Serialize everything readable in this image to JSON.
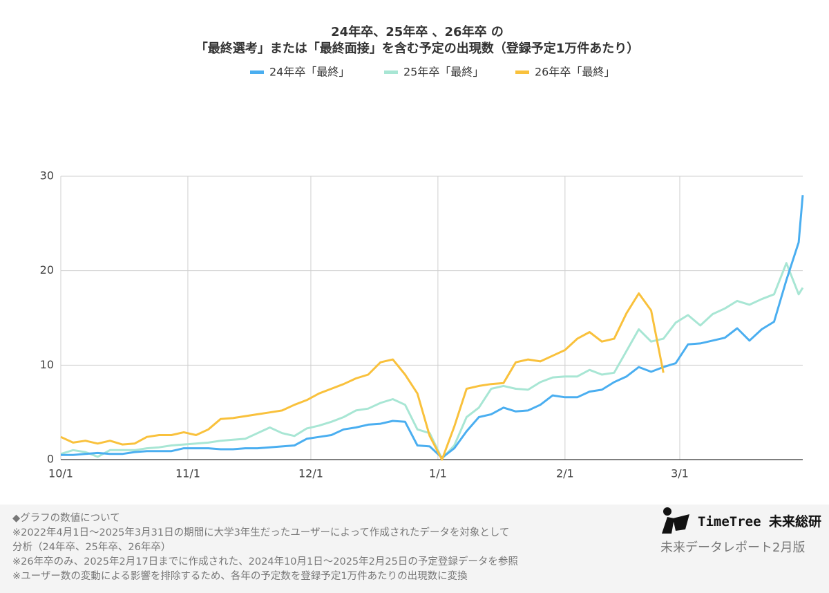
{
  "chart_data": {
    "type": "line",
    "title": "24年卒、25年卒 、26年卒 の",
    "subtitle": "「最終選考」または「最終面接」を含む予定の出現数（登録予定1万件あたり）",
    "x": [
      0,
      3,
      6,
      9,
      12,
      15,
      18,
      21,
      24,
      27,
      30,
      33,
      36,
      39,
      42,
      45,
      48,
      51,
      54,
      57,
      60,
      63,
      66,
      69,
      72,
      75,
      78,
      81,
      84,
      87,
      90,
      93,
      96,
      99,
      102,
      105,
      108,
      111,
      114,
      117,
      120,
      123,
      126,
      129,
      132,
      135,
      138,
      141,
      144,
      147,
      150,
      153,
      156,
      159,
      162,
      165,
      168,
      171,
      174,
      177,
      180,
      181
    ],
    "xlim": [
      0,
      181
    ],
    "xticks": [
      {
        "value": 0,
        "label": "10/1"
      },
      {
        "value": 31,
        "label": "11/1"
      },
      {
        "value": 61,
        "label": "12/1"
      },
      {
        "value": 92,
        "label": "1/1"
      },
      {
        "value": 123,
        "label": "2/1"
      },
      {
        "value": 151,
        "label": "3/1"
      }
    ],
    "ylim": [
      0,
      30
    ],
    "yticks": [
      0,
      10,
      20,
      30
    ],
    "grid": true,
    "legend": "top",
    "series": [
      {
        "name": "24年卒「最終」",
        "color": "#4aaef0",
        "values": [
          0.5,
          0.5,
          0.6,
          0.7,
          0.6,
          0.6,
          0.8,
          0.9,
          0.9,
          0.9,
          1.2,
          1.2,
          1.2,
          1.1,
          1.1,
          1.2,
          1.2,
          1.3,
          1.4,
          1.5,
          2.2,
          2.4,
          2.6,
          3.2,
          3.4,
          3.7,
          3.8,
          4.1,
          4.0,
          1.5,
          1.4,
          0.2,
          1.2,
          3.0,
          4.5,
          4.8,
          5.5,
          5.1,
          5.2,
          5.8,
          6.8,
          6.6,
          6.6,
          7.2,
          7.4,
          8.2,
          8.8,
          9.8,
          9.3,
          9.8,
          10.2,
          12.2,
          12.3,
          12.6,
          12.9,
          13.9,
          12.6,
          13.8,
          14.6,
          19.0,
          23.0,
          28.0
        ]
      },
      {
        "name": "25年卒「最終」",
        "color": "#a8e6d4",
        "values": [
          0.6,
          1.0,
          0.8,
          0.3,
          1.0,
          1.0,
          1.0,
          1.2,
          1.3,
          1.5,
          1.6,
          1.7,
          1.8,
          2.0,
          2.1,
          2.2,
          2.8,
          3.4,
          2.8,
          2.5,
          3.3,
          3.6,
          4.0,
          4.5,
          5.2,
          5.4,
          6.0,
          6.4,
          5.8,
          3.2,
          2.8,
          0.1,
          1.5,
          4.5,
          5.5,
          7.5,
          7.8,
          7.5,
          7.4,
          8.2,
          8.7,
          8.8,
          8.8,
          9.5,
          9.0,
          9.2,
          11.5,
          13.8,
          12.5,
          12.8,
          14.5,
          15.3,
          14.2,
          15.4,
          16.0,
          16.8,
          16.4,
          17.0,
          17.5,
          20.8,
          17.5,
          18.2
        ]
      },
      {
        "name": "26年卒「最終」",
        "color": "#f9c13c",
        "values": [
          2.4,
          1.8,
          2.0,
          1.7,
          2.0,
          1.6,
          1.7,
          2.4,
          2.6,
          2.6,
          2.9,
          2.6,
          3.2,
          4.3,
          4.4,
          4.6,
          4.8,
          5.0,
          5.2,
          5.8,
          6.3,
          7.0,
          7.5,
          8.0,
          8.6,
          9.0,
          10.3,
          10.6,
          9.0,
          7.0,
          2.5,
          0.0,
          3.5,
          7.5,
          7.8,
          8.0,
          8.1,
          10.3,
          10.6,
          10.4,
          11.0,
          11.6,
          12.8,
          13.5,
          12.5,
          12.8,
          15.5,
          17.6,
          15.8,
          9.2,
          null,
          null,
          null,
          null,
          null,
          null,
          null,
          null,
          null,
          null,
          null,
          null
        ]
      }
    ]
  },
  "footer": {
    "notes": [
      "◆グラフの数値について",
      "※2022年4月1日〜2025年3月31日の期間に大学3年生だったユーザーによって作成されたデータを対象として",
      "分析（24年卒、25年卒、26年卒）",
      "※26年卒のみ、2025年2月17日までに作成された、2024年10月1日〜2025年2月25日の予定登録データを参照",
      "※ユーザー数の変動による影響を排除するため、各年の予定数を登録予定1万件あたりの出現数に変換"
    ],
    "brand": "TimeTree 未来総研",
    "report": "未来データレポート2月版"
  }
}
